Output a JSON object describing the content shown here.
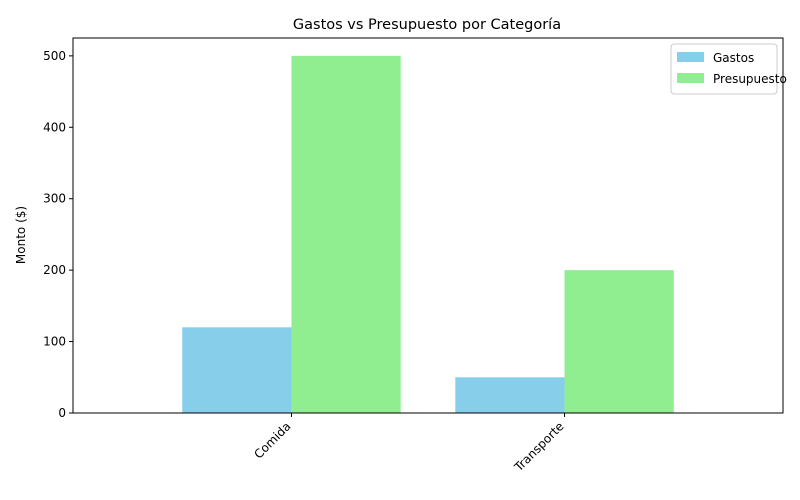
{
  "chart_data": {
    "type": "bar",
    "title": "Gastos vs Presupuesto por Categoría",
    "xlabel": "",
    "ylabel": "Monto ($)",
    "categories": [
      "Comida",
      "Transporte"
    ],
    "series": [
      {
        "name": "Gastos",
        "values": [
          120,
          50
        ],
        "color": "#87ceeb"
      },
      {
        "name": "Presupuesto",
        "values": [
          500,
          200
        ],
        "color": "#90ee90"
      }
    ],
    "ylim": [
      0,
      525
    ],
    "yticks": [
      0,
      100,
      200,
      300,
      400,
      500
    ],
    "grid": false,
    "legend_position": "top-right",
    "x_tick_rotation": 45
  }
}
